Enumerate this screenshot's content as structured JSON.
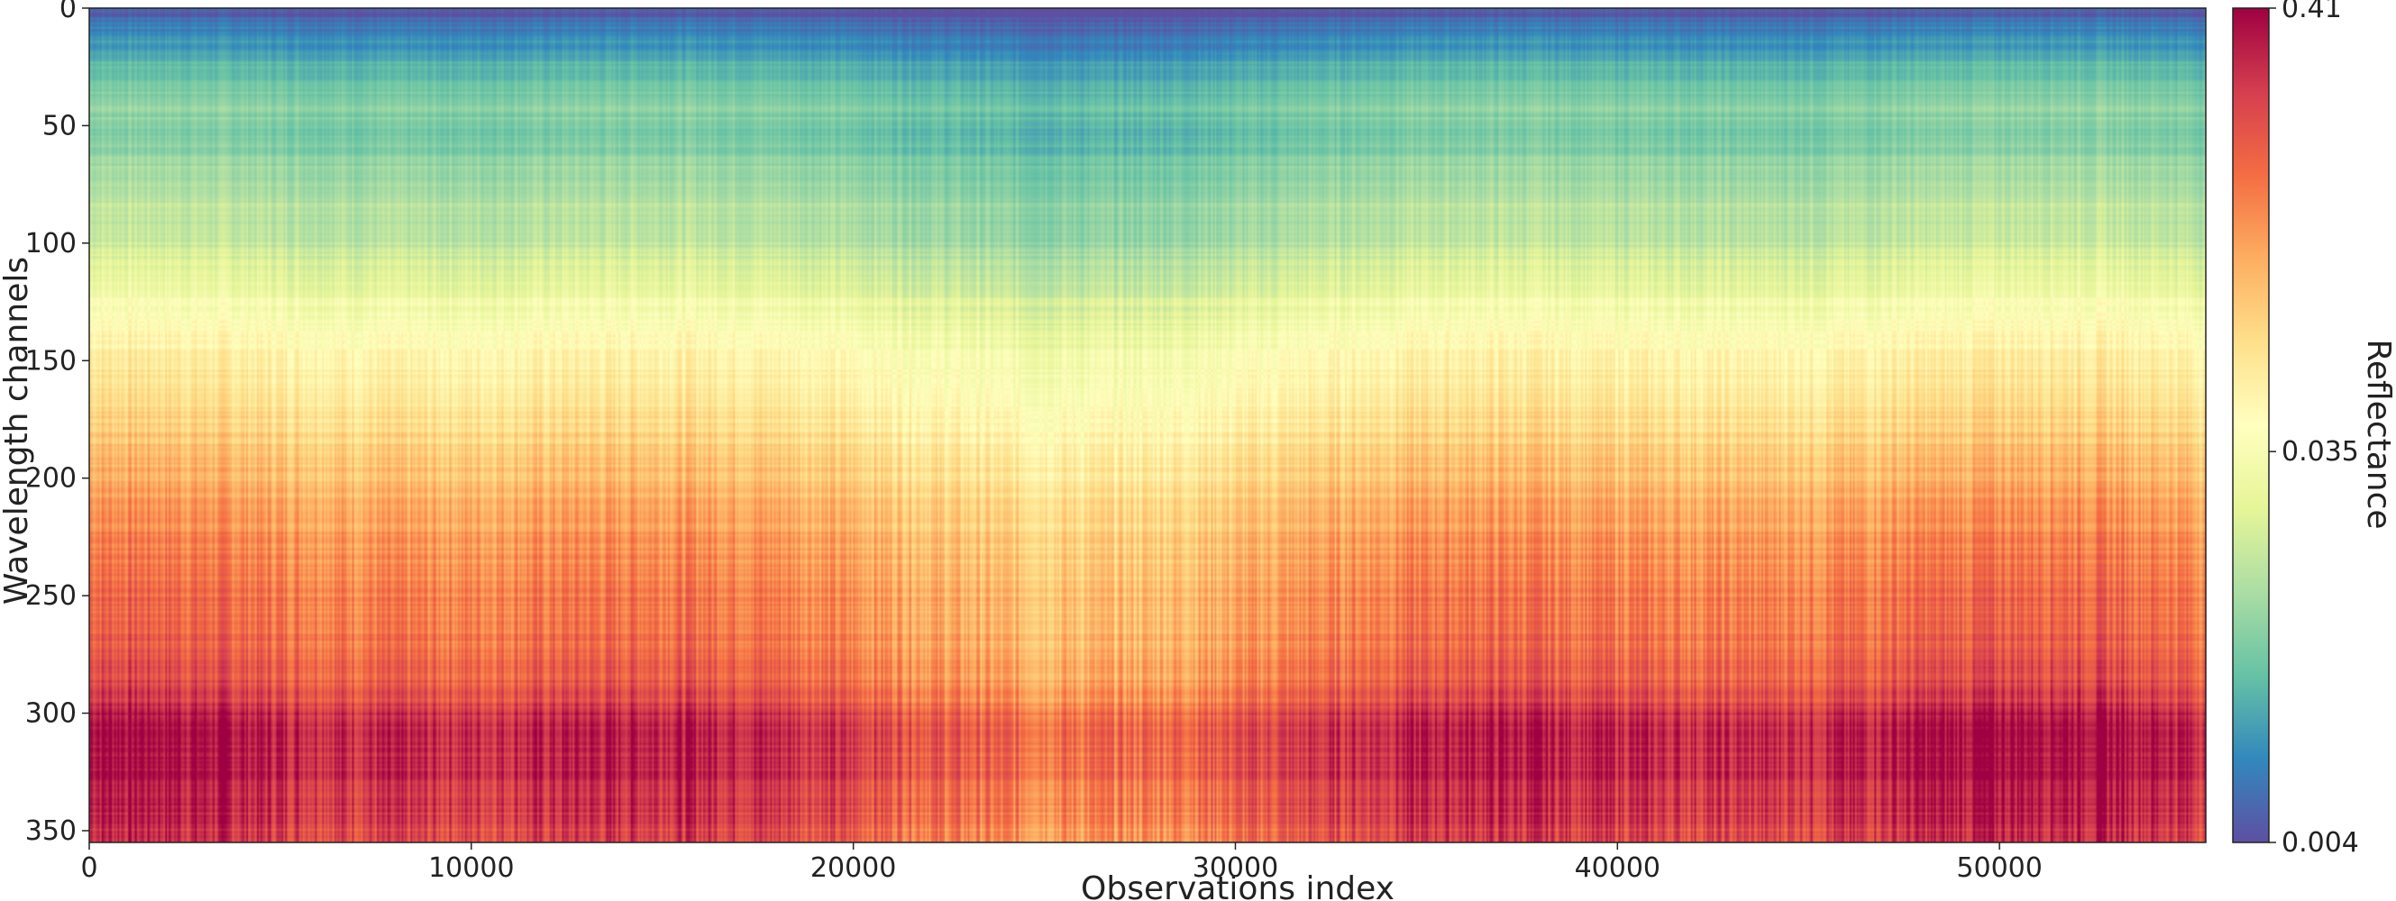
{
  "chart_data": {
    "type": "heatmap",
    "xlabel": "Observations index",
    "ylabel": "Wavelength channels",
    "colorbar_label": "Reflectance",
    "xlim": [
      0,
      55400
    ],
    "ylim": [
      355,
      0
    ],
    "x_ticks": [
      0,
      10000,
      20000,
      30000,
      40000,
      50000
    ],
    "x_tick_labels": [
      "0",
      "10000",
      "20000",
      "30000",
      "40000",
      "50000"
    ],
    "y_ticks": [
      0,
      50,
      100,
      150,
      200,
      250,
      300,
      350
    ],
    "y_tick_labels": [
      "0",
      "50",
      "100",
      "150",
      "200",
      "250",
      "300",
      "350"
    ],
    "colorbar_ticks": [
      0.004,
      0.035,
      0.41
    ],
    "colorbar_tick_labels": [
      "0.004",
      "0.035",
      "0.41"
    ],
    "colorbar_range": [
      0.004,
      0.41
    ],
    "colorbar_scale": "log",
    "colormap": "Spectral_r",
    "colormap_stops": [
      "#5e4fa2",
      "#3288bd",
      "#66c2a5",
      "#abdda4",
      "#e6f598",
      "#ffffbf",
      "#fee08b",
      "#fdae61",
      "#f46d43",
      "#d53e4f",
      "#9e0142"
    ],
    "channel_profile": [
      [
        0,
        0.004
      ],
      [
        10,
        0.006
      ],
      [
        25,
        0.009
      ],
      [
        40,
        0.012
      ],
      [
        55,
        0.011
      ],
      [
        75,
        0.015
      ],
      [
        100,
        0.018
      ],
      [
        125,
        0.03
      ],
      [
        150,
        0.045
      ],
      [
        175,
        0.06
      ],
      [
        200,
        0.08
      ],
      [
        225,
        0.11
      ],
      [
        250,
        0.13
      ],
      [
        275,
        0.15
      ],
      [
        295,
        0.2
      ],
      [
        300,
        0.26
      ],
      [
        320,
        0.27
      ],
      [
        340,
        0.24
      ],
      [
        350,
        0.2
      ],
      [
        355,
        0.22
      ]
    ],
    "grid": false,
    "legend": "none"
  }
}
